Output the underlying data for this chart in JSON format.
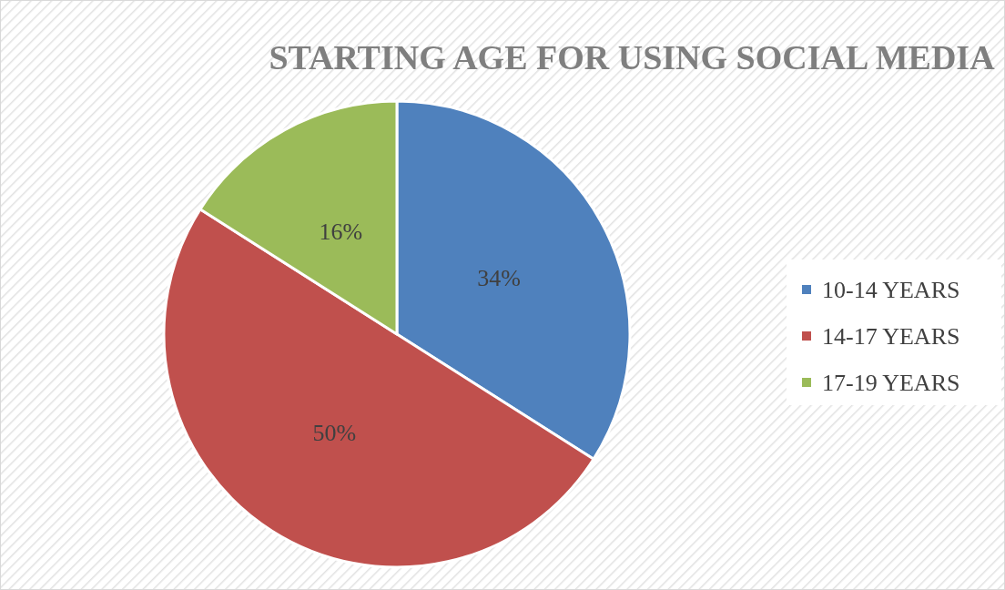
{
  "chart_data": {
    "type": "pie",
    "title": "STARTING AGE FOR USING SOCIAL MEDIA",
    "categories": [
      "10-14 YEARS",
      "14-17 YEARS",
      "17-19 YEARS"
    ],
    "values": [
      34,
      50,
      16
    ],
    "colors": [
      "#4f81bd",
      "#c0504d",
      "#9bbb59"
    ],
    "value_labels": [
      "34%",
      "50%",
      "16%"
    ],
    "legend": "right"
  }
}
